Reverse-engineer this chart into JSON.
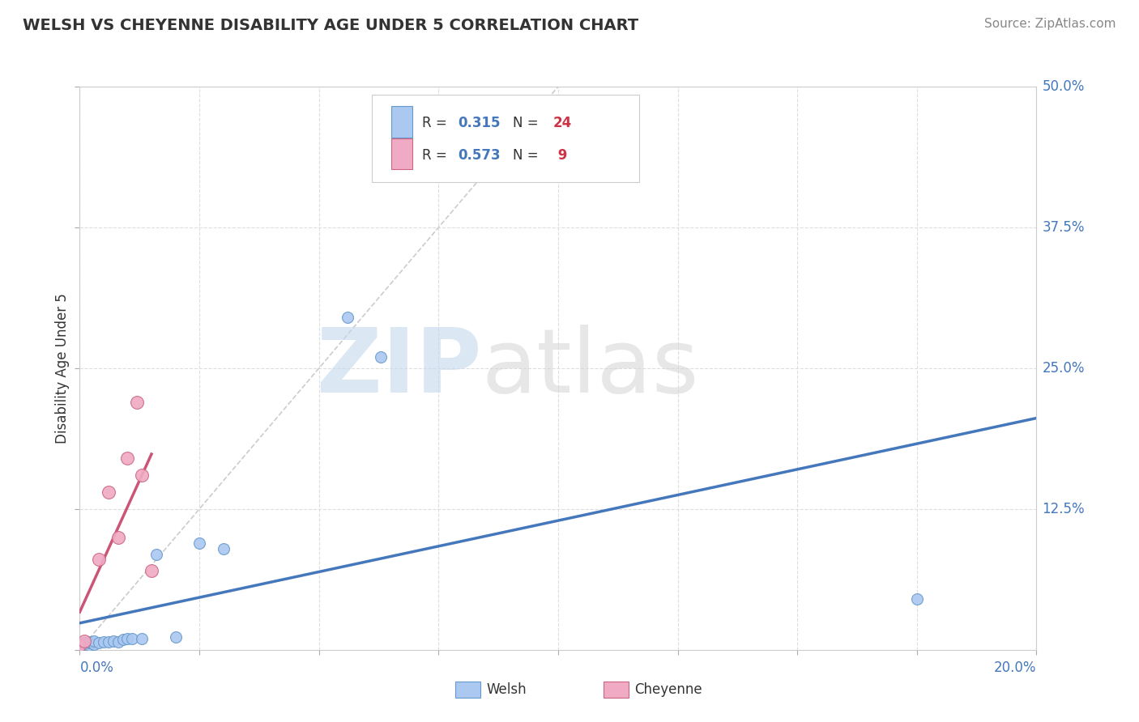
{
  "title": "WELSH VS CHEYENNE DISABILITY AGE UNDER 5 CORRELATION CHART",
  "source": "Source: ZipAtlas.com",
  "ylabel": "Disability Age Under 5",
  "welsh_R": 0.315,
  "welsh_N": 24,
  "cheyenne_R": 0.573,
  "cheyenne_N": 9,
  "welsh_color": "#aac8f0",
  "cheyenne_color": "#f0aac4",
  "welsh_edge_color": "#6699cc",
  "cheyenne_edge_color": "#cc6680",
  "welsh_line_color": "#4477bb",
  "cheyenne_line_color": "#cc5577",
  "ref_line_color": "#cccccc",
  "text_blue": "#4477bb",
  "text_red": "#cc3344",
  "text_dark": "#333333",
  "background_color": "#ffffff",
  "grid_color": "#dddddd",
  "xlim": [
    0.0,
    0.2
  ],
  "ylim": [
    0.0,
    0.5
  ],
  "xticks": [
    0.0,
    0.025,
    0.05,
    0.075,
    0.1,
    0.125,
    0.15,
    0.175,
    0.2
  ],
  "yticks": [
    0.0,
    0.125,
    0.25,
    0.375,
    0.5
  ],
  "welsh_x": [
    0.0,
    0.001,
    0.001,
    0.002,
    0.002,
    0.002,
    0.003,
    0.003,
    0.004,
    0.005,
    0.006,
    0.007,
    0.008,
    0.009,
    0.01,
    0.011,
    0.013,
    0.016,
    0.02,
    0.025,
    0.03,
    0.056,
    0.063,
    0.175
  ],
  "welsh_y": [
    0.003,
    0.005,
    0.006,
    0.004,
    0.006,
    0.007,
    0.005,
    0.008,
    0.006,
    0.007,
    0.007,
    0.008,
    0.007,
    0.009,
    0.01,
    0.01,
    0.01,
    0.085,
    0.011,
    0.095,
    0.09,
    0.295,
    0.26,
    0.045
  ],
  "cheyenne_x": [
    0.0,
    0.001,
    0.004,
    0.006,
    0.008,
    0.01,
    0.012,
    0.013,
    0.015
  ],
  "cheyenne_y": [
    0.004,
    0.008,
    0.08,
    0.14,
    0.1,
    0.17,
    0.22,
    0.155,
    0.07
  ],
  "dot_size_welsh": 100,
  "dot_size_cheyenne": 130,
  "watermark_zip_color": "#c5d8ee",
  "watermark_atlas_color": "#d5d5d5"
}
